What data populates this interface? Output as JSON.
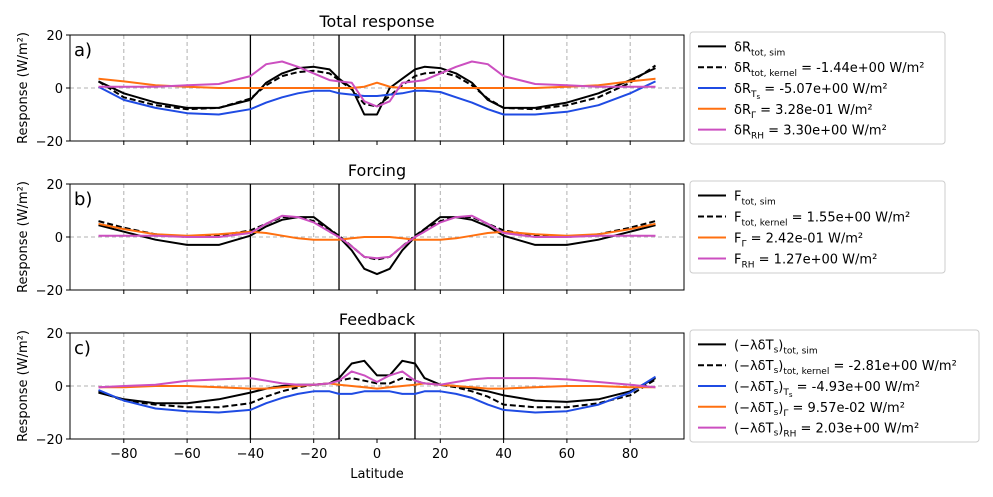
{
  "figure": {
    "xlabel": "Latitude",
    "xlim": [
      -97,
      97
    ],
    "xticks": [
      -80,
      -60,
      -40,
      -20,
      0,
      20,
      40,
      60,
      80
    ],
    "dashed_vlines": [
      -80,
      -60,
      -20,
      20,
      60,
      80
    ],
    "solid_vlines": [
      -40,
      -12,
      12,
      40
    ]
  },
  "chart_data": [
    {
      "type": "line",
      "panel_label": "a)",
      "title": "Total response",
      "ylabel": "Response (W/m²)",
      "ylim": [
        -20,
        20
      ],
      "yticks": [
        -20,
        0,
        20
      ],
      "legend_position": "outside-right",
      "x": [
        -88,
        -80,
        -70,
        -60,
        -50,
        -40,
        -35,
        -30,
        -25,
        -20,
        -15,
        -12,
        -8,
        -4,
        0,
        4,
        8,
        12,
        15,
        20,
        25,
        30,
        35,
        40,
        50,
        60,
        70,
        80,
        88
      ],
      "series": [
        {
          "name": "tot_sim",
          "label_main": "δR",
          "label_sub": "tot, sim",
          "label_suffix": "",
          "color": "#000000",
          "dash": "solid",
          "values": [
            2.5,
            -2.0,
            -5.5,
            -7.5,
            -7.5,
            -4.5,
            2.0,
            5.5,
            7.5,
            8.0,
            7.0,
            3.5,
            0.0,
            -10.0,
            -10.0,
            0.0,
            3.5,
            7.0,
            8.0,
            7.5,
            5.5,
            2.0,
            -4.5,
            -7.5,
            -7.5,
            -5.5,
            -2.0,
            3.0,
            7.5
          ]
        },
        {
          "name": "tot_kernel",
          "label_main": "δR",
          "label_sub": "tot, kernel",
          "label_suffix": " = -1.44e+00 W/m²",
          "color": "#000000",
          "dash": "dashed",
          "values": [
            2.5,
            -3.5,
            -6.5,
            -8.0,
            -7.5,
            -4.0,
            1.0,
            4.5,
            6.0,
            6.5,
            5.5,
            3.0,
            -0.5,
            -6.0,
            -7.0,
            -3.0,
            1.0,
            4.5,
            5.5,
            6.0,
            4.5,
            1.0,
            -4.0,
            -7.5,
            -8.0,
            -6.5,
            -3.5,
            2.0,
            8.5
          ]
        },
        {
          "name": "ts",
          "label_main": "δR",
          "label_sub": "T",
          "label_subsub": "s",
          "label_suffix": " = -5.07e+00 W/m²",
          "color": "#1f4be3",
          "dash": "solid",
          "values": [
            0.5,
            -4.5,
            -7.5,
            -9.5,
            -10.0,
            -8.0,
            -5.5,
            -3.5,
            -2.0,
            -1.0,
            -1.0,
            -2.0,
            -2.5,
            -3.0,
            -3.0,
            -2.5,
            -2.0,
            -1.0,
            -1.0,
            -1.5,
            -3.5,
            -5.5,
            -8.0,
            -10.0,
            -10.0,
            -9.0,
            -6.5,
            -2.0,
            2.5
          ]
        },
        {
          "name": "gamma",
          "label_main": "δR",
          "label_sub": "Γ",
          "label_suffix": " = 3.28e-01 W/m²",
          "color": "#ff7010",
          "dash": "solid",
          "values": [
            3.5,
            2.5,
            1.0,
            0.5,
            0.0,
            0.0,
            0.0,
            0.0,
            0.0,
            0.0,
            0.0,
            0.0,
            0.0,
            0.5,
            2.0,
            0.5,
            0.0,
            0.0,
            0.0,
            0.0,
            0.0,
            0.0,
            0.0,
            0.0,
            0.0,
            0.5,
            1.0,
            2.5,
            3.5
          ]
        },
        {
          "name": "rh",
          "label_main": "δR",
          "label_sub": "RH",
          "label_suffix": " = 3.30e+00 W/m²",
          "color": "#cc4fc0",
          "dash": "solid",
          "values": [
            0.5,
            0.5,
            0.5,
            1.0,
            1.5,
            4.5,
            9.0,
            10.0,
            8.0,
            5.5,
            3.0,
            2.5,
            2.0,
            -5.0,
            -7.0,
            -5.0,
            2.0,
            2.5,
            3.0,
            5.5,
            8.0,
            10.0,
            9.0,
            4.5,
            1.5,
            1.0,
            0.5,
            0.5,
            0.5
          ]
        }
      ]
    },
    {
      "type": "line",
      "panel_label": "b)",
      "title": "Forcing",
      "ylabel": "Response (W/m²)",
      "ylim": [
        -20,
        20
      ],
      "yticks": [
        -20,
        0,
        20
      ],
      "legend_position": "outside-right",
      "x": [
        -88,
        -80,
        -70,
        -60,
        -50,
        -40,
        -35,
        -30,
        -25,
        -20,
        -15,
        -12,
        -8,
        -4,
        0,
        4,
        8,
        12,
        15,
        20,
        25,
        30,
        35,
        40,
        50,
        60,
        70,
        80,
        88
      ],
      "series": [
        {
          "name": "tot_sim",
          "label_main": "F",
          "label_sub": "tot, sim",
          "label_suffix": "",
          "color": "#000000",
          "dash": "solid",
          "values": [
            4.5,
            2.0,
            -1.0,
            -3.0,
            -3.0,
            0.5,
            4.0,
            6.5,
            7.5,
            7.5,
            3.0,
            0.0,
            -5.0,
            -12.0,
            -14.0,
            -12.0,
            -5.0,
            0.0,
            3.0,
            7.5,
            7.5,
            6.5,
            4.0,
            0.5,
            -3.0,
            -3.0,
            -1.0,
            2.0,
            4.5
          ]
        },
        {
          "name": "tot_kernel",
          "label_main": "F",
          "label_sub": "tot, kernel",
          "label_suffix": " = 1.55e+00 W/m²",
          "color": "#000000",
          "dash": "dashed",
          "values": [
            6.0,
            3.5,
            1.0,
            0.0,
            0.5,
            2.5,
            5.0,
            7.5,
            7.5,
            6.0,
            3.0,
            0.5,
            -3.5,
            -7.5,
            -8.5,
            -7.5,
            -3.5,
            0.5,
            3.0,
            6.0,
            7.5,
            7.5,
            5.0,
            2.5,
            0.5,
            0.0,
            1.0,
            3.5,
            6.0
          ]
        },
        {
          "name": "gamma",
          "label_main": "F",
          "label_sub": "Γ",
          "label_suffix": " =  2.42e-01 W/m²",
          "color": "#ff7010",
          "dash": "solid",
          "values": [
            5.0,
            3.0,
            1.0,
            0.5,
            1.0,
            2.0,
            1.5,
            0.5,
            -0.5,
            -1.0,
            -1.0,
            -1.0,
            -0.5,
            0.0,
            0.0,
            0.0,
            -0.5,
            -1.0,
            -1.0,
            -1.0,
            -0.5,
            0.5,
            1.5,
            2.0,
            1.0,
            0.5,
            1.0,
            3.0,
            5.0
          ]
        },
        {
          "name": "rh",
          "label_main": "F",
          "label_sub": "RH",
          "label_suffix": " =  1.27e+00 W/m²",
          "color": "#cc4fc0",
          "dash": "solid",
          "values": [
            0.5,
            0.5,
            0.5,
            0.0,
            0.0,
            1.5,
            5.0,
            8.0,
            7.5,
            5.5,
            2.0,
            0.0,
            -3.5,
            -7.5,
            -8.0,
            -7.5,
            -3.5,
            0.0,
            2.0,
            5.5,
            7.5,
            8.0,
            5.0,
            1.5,
            0.0,
            0.0,
            0.5,
            0.5,
            0.5
          ]
        }
      ]
    },
    {
      "type": "line",
      "panel_label": "c)",
      "title": "Feedback",
      "ylabel": "Response (W/m²)",
      "ylim": [
        -20,
        20
      ],
      "yticks": [
        -20,
        0,
        20
      ],
      "legend_position": "outside-right",
      "x": [
        -88,
        -80,
        -70,
        -60,
        -50,
        -40,
        -35,
        -30,
        -25,
        -20,
        -15,
        -12,
        -8,
        -4,
        0,
        4,
        8,
        12,
        15,
        20,
        25,
        30,
        35,
        40,
        50,
        60,
        70,
        80,
        88
      ],
      "series": [
        {
          "name": "tot_sim",
          "label_main": "(−λδT",
          "label_mainsub": "s",
          "label_close": ")",
          "label_sub": "tot, sim",
          "label_suffix": "",
          "color": "#000000",
          "dash": "solid",
          "values": [
            -2.5,
            -5.0,
            -6.5,
            -6.5,
            -5.0,
            -2.5,
            -1.0,
            0.0,
            0.5,
            0.5,
            1.0,
            3.0,
            8.5,
            9.5,
            4.0,
            4.0,
            9.5,
            8.5,
            3.0,
            0.5,
            0.0,
            -1.0,
            -2.0,
            -3.5,
            -5.5,
            -6.0,
            -5.0,
            -2.0,
            3.0
          ]
        },
        {
          "name": "tot_kernel",
          "label_main": "(−λδT",
          "label_mainsub": "s",
          "label_close": ")",
          "label_sub": "tot, kernel",
          "label_suffix": " = -2.81e+00 W/m²",
          "color": "#000000",
          "dash": "dashed",
          "values": [
            -2.0,
            -5.5,
            -7.0,
            -8.0,
            -8.0,
            -6.5,
            -4.0,
            -2.0,
            -0.5,
            0.5,
            1.0,
            2.0,
            3.0,
            2.0,
            1.0,
            1.0,
            3.0,
            2.0,
            1.0,
            0.5,
            -0.5,
            -2.0,
            -4.0,
            -7.0,
            -8.0,
            -8.0,
            -6.5,
            -3.5,
            2.5
          ]
        },
        {
          "name": "ts",
          "label_main": "(−λδT",
          "label_mainsub": "s",
          "label_close": ")",
          "label_sub": "T",
          "label_subsub": "s",
          "label_suffix": " = -4.93e+00 W/m²",
          "color": "#1f4be3",
          "dash": "solid",
          "values": [
            -1.5,
            -5.5,
            -8.5,
            -9.5,
            -10.0,
            -9.0,
            -6.5,
            -4.5,
            -3.0,
            -2.0,
            -2.0,
            -3.0,
            -3.0,
            -2.0,
            -2.0,
            -2.0,
            -3.0,
            -3.0,
            -2.0,
            -2.0,
            -3.0,
            -4.5,
            -7.0,
            -9.0,
            -10.0,
            -9.5,
            -7.0,
            -2.5,
            3.5
          ]
        },
        {
          "name": "gamma",
          "label_main": "(−λδT",
          "label_mainsub": "s",
          "label_close": ")",
          "label_sub": "Γ",
          "label_suffix": " = 9.57e-02 W/m²",
          "color": "#ff7010",
          "dash": "solid",
          "values": [
            -0.5,
            -0.5,
            0.0,
            0.0,
            -0.5,
            -1.0,
            -1.0,
            -0.5,
            0.0,
            0.5,
            1.0,
            0.5,
            0.0,
            -0.5,
            -1.0,
            -0.5,
            0.0,
            0.5,
            1.0,
            0.5,
            0.0,
            -0.5,
            -1.0,
            -1.0,
            -0.5,
            0.0,
            0.0,
            -0.5,
            -0.5
          ]
        },
        {
          "name": "rh",
          "label_main": "(−λδT",
          "label_mainsub": "s",
          "label_close": ")",
          "label_sub": "RH",
          "label_suffix": " =  2.03e+00 W/m²",
          "color": "#cc4fc0",
          "dash": "solid",
          "values": [
            -0.5,
            0.0,
            0.5,
            2.0,
            2.5,
            3.0,
            2.0,
            1.0,
            0.5,
            0.5,
            1.0,
            2.0,
            5.5,
            4.0,
            1.5,
            4.0,
            5.5,
            2.0,
            1.0,
            0.5,
            1.5,
            2.5,
            3.0,
            3.0,
            3.0,
            2.5,
            1.5,
            0.5,
            -0.5
          ]
        }
      ]
    }
  ]
}
